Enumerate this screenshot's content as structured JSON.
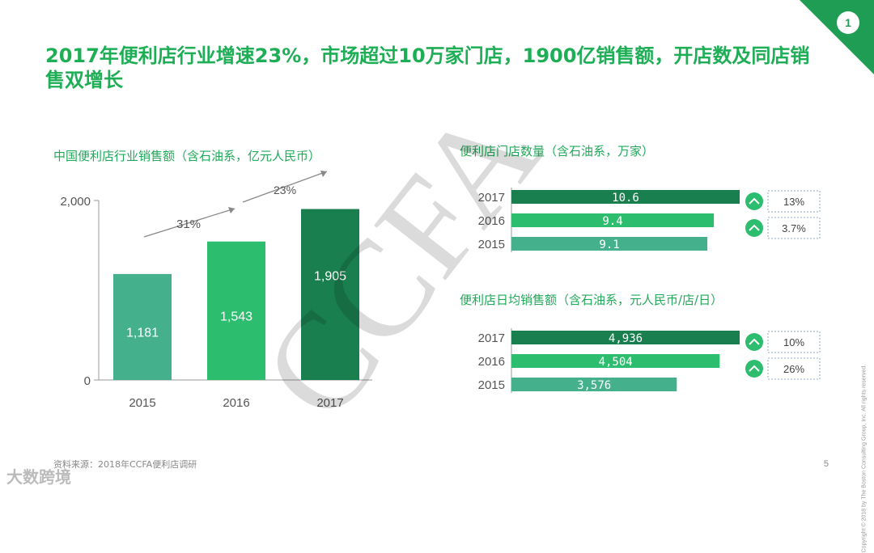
{
  "page_badge": "1",
  "headline": "2017年便利店行业增速23%，市场超过10万家门店，1900亿销售额，开店数及同店销售双增长",
  "source_note": "资料来源：2018年CCFA便利店调研",
  "page_number": "5",
  "copyright": "Copyright © 2018 by The Boston Consulting Group, Inc. All rights reserved.",
  "watermark": "CCFA",
  "logo_text": "大数跨境",
  "colors": {
    "dark_green": "#1a7f4e",
    "mid_green": "#2dbd6e",
    "teal": "#45b08c",
    "title_green": "#1eae55"
  },
  "chart_data": [
    {
      "type": "bar",
      "title": "中国便利店行业销售额（含石油系，亿元人民币）",
      "categories": [
        "2015",
        "2016",
        "2017"
      ],
      "values": [
        1181,
        1543,
        1905
      ],
      "value_labels": [
        "1,181",
        "1,543",
        "1,905"
      ],
      "y_ticks": [
        "0",
        "2,000"
      ],
      "ylim": [
        0,
        2000
      ],
      "growth_annotations": [
        "31%",
        "23%"
      ]
    },
    {
      "type": "bar",
      "orientation": "horizontal",
      "title": "便利店门店数量（含石油系，万家）",
      "categories": [
        "2017",
        "2016",
        "2015"
      ],
      "values": [
        10.6,
        9.4,
        9.1
      ],
      "value_labels": [
        "10.6",
        "9.4",
        "9.1"
      ],
      "growth": [
        "13%",
        "3.7%"
      ]
    },
    {
      "type": "bar",
      "orientation": "horizontal",
      "title": "便利店日均销售额（含石油系，元人民币/店/日）",
      "categories": [
        "2017",
        "2016",
        "2015"
      ],
      "values": [
        4936,
        4504,
        3576
      ],
      "value_labels": [
        "4,936",
        "4,504",
        "3,576"
      ],
      "growth": [
        "10%",
        "26%"
      ]
    }
  ]
}
